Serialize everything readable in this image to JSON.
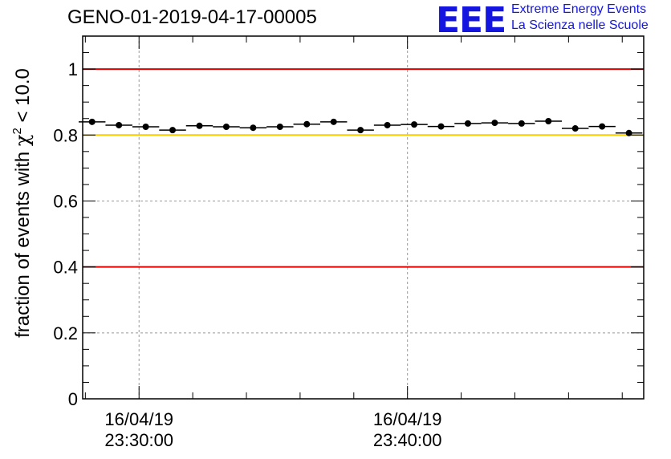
{
  "header": {
    "title": "GENO-01-2019-04-17-00005",
    "logo_text": "EEE",
    "logo_line1": "Extreme Energy Events",
    "logo_line2": "La Scienza nelle Scuole"
  },
  "colors": {
    "red_threshold": "#e00000",
    "yellow_threshold": "#ffcc00",
    "marker": "#000000",
    "grid": "#999999",
    "logo": "#1515e0"
  },
  "chart_data": {
    "type": "scatter",
    "title": "GENO-01-2019-04-17-00005",
    "xlabel": "",
    "ylabel_prefix": "fraction of events with ",
    "ylabel_chi": "χ",
    "ylabel_exp": "2",
    "ylabel_suffix": " < 10.0",
    "ylim": [
      0,
      1.1
    ],
    "y_ticks": [
      0,
      0.2,
      0.4,
      0.6,
      0.8,
      1
    ],
    "y_tick_labels": [
      "0",
      "0.2",
      "0.4",
      "0.6",
      "0.8",
      "1"
    ],
    "x_unit": "minutes since 16/04/19 23:30:00",
    "xlim": [
      -2.1,
      18.8
    ],
    "x_ticks": [
      {
        "value": 0,
        "line1": "16/04/19",
        "line2": "23:30:00"
      },
      {
        "value": 10,
        "line1": "16/04/19",
        "line2": "23:40:00"
      }
    ],
    "bin_width_min": 1,
    "grid": true,
    "thresholds": [
      {
        "value": 1.0,
        "color": "red"
      },
      {
        "value": 0.8,
        "color": "yellow"
      },
      {
        "value": 0.4,
        "color": "red"
      }
    ],
    "series": [
      {
        "name": "fraction",
        "x": [
          -1.75,
          -0.75,
          0.25,
          1.25,
          2.25,
          3.25,
          4.25,
          5.25,
          6.25,
          7.25,
          8.25,
          9.25,
          10.25,
          11.25,
          12.25,
          13.25,
          14.25,
          15.25,
          16.25,
          17.25,
          18.25
        ],
        "values": [
          0.84,
          0.83,
          0.825,
          0.815,
          0.828,
          0.825,
          0.822,
          0.825,
          0.833,
          0.84,
          0.815,
          0.83,
          0.832,
          0.826,
          0.835,
          0.837,
          0.835,
          0.842,
          0.82,
          0.826,
          0.806
        ]
      }
    ]
  }
}
